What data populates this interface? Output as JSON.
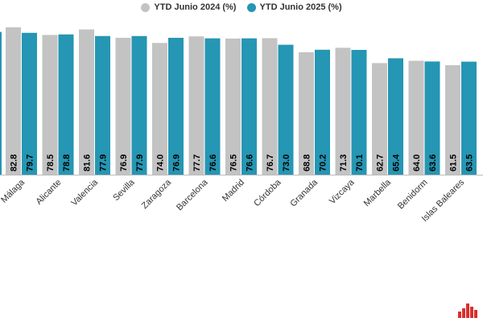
{
  "chart_data": {
    "type": "bar",
    "title": "",
    "xlabel": "",
    "ylabel": "",
    "ylim": [
      0,
      90
    ],
    "grid": false,
    "legend_position": "top-center",
    "categories": [
      "Málaga",
      "Alicante",
      "Valencia",
      "Sevilla",
      "Zaragoza",
      "Barcelona",
      "Madrid",
      "Córdoba",
      "Granada",
      "Vizcaya",
      "Marbella",
      "Benidorm",
      "Islas Baleares"
    ],
    "series": [
      {
        "name": "YTD Junio 2024 (%)",
        "color": "#c3c3c3",
        "values": [
          82.8,
          78.5,
          81.6,
          76.9,
          74.0,
          77.7,
          76.5,
          76.7,
          68.8,
          71.3,
          62.7,
          64.0,
          61.5
        ],
        "labels": [
          "82.8",
          "78.5",
          "81.6",
          "76.9",
          "74.0",
          "77.7",
          "76.5",
          "76.7",
          "68.8",
          "71.3",
          "62.7",
          "64.0",
          "61.5"
        ]
      },
      {
        "name": "YTD Junio 2025 (%)",
        "color": "#2596b3",
        "values": [
          79.7,
          78.8,
          77.9,
          77.9,
          76.9,
          76.6,
          76.6,
          73.0,
          70.2,
          70.1,
          65.4,
          63.6,
          63.5
        ],
        "labels": [
          "79.7",
          "78.8",
          "77.9",
          "77.9",
          "76.9",
          "76.6",
          "76.6",
          "73.0",
          "70.2",
          "70.1",
          "65.4",
          "63.6",
          "63.5"
        ]
      }
    ],
    "data_label_color": "#000000"
  },
  "logo": {
    "name": "brand-logo",
    "color": "#d9302c"
  }
}
